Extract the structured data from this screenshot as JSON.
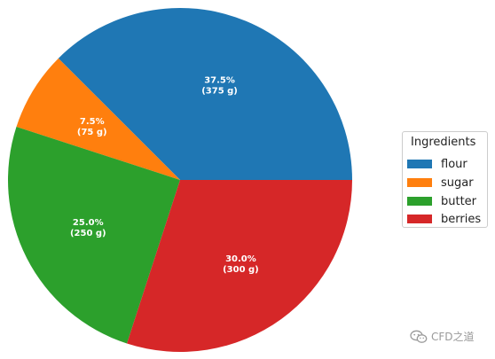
{
  "chart_data": {
    "type": "pie",
    "title": "",
    "categories": [
      "flour",
      "sugar",
      "butter",
      "berries"
    ],
    "values": [
      375,
      75,
      250,
      300
    ],
    "unit": "g",
    "percent_labels": [
      "37.5%",
      "7.5%",
      "25.0%",
      "30.0%"
    ],
    "value_labels": [
      "(375 g)",
      "(75 g)",
      "(250 g)",
      "(300 g)"
    ],
    "colors": [
      "#1f77b4",
      "#ff7f0e",
      "#2ca02c",
      "#d62728"
    ],
    "start_angle_deg": 0,
    "direction": "counterclockwise",
    "legend": {
      "title": "Ingredients",
      "placement": "right",
      "entries": [
        "flour",
        "sugar",
        "butter",
        "berries"
      ]
    }
  },
  "watermark": {
    "text": "CFD之道",
    "icon": "wechat-icon"
  }
}
